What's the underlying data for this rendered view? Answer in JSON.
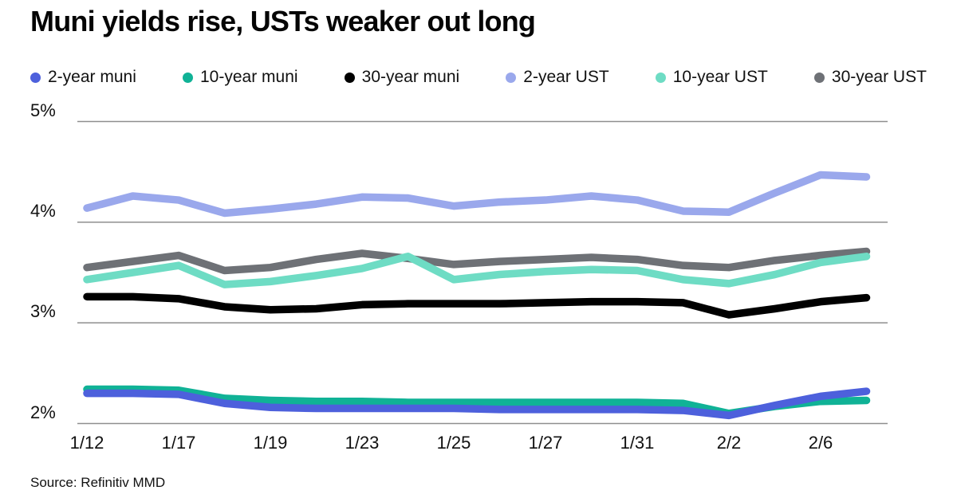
{
  "title": "Muni yields rise, USTs weaker out long",
  "source": "Source: Refinitiv MMD",
  "chart_data": {
    "type": "line",
    "title": "Muni yields rise, USTs weaker out long",
    "grid": true,
    "legend_position": "top",
    "n_points": 18,
    "ylim": [
      2,
      5
    ],
    "yticks": [
      {
        "value": 5,
        "label": "5%"
      },
      {
        "value": 4,
        "label": "4%"
      },
      {
        "value": 3,
        "label": "3%"
      },
      {
        "value": 2,
        "label": "2%"
      }
    ],
    "x_ticks": [
      {
        "index": 0,
        "label": "1/12"
      },
      {
        "index": 2,
        "label": "1/17"
      },
      {
        "index": 4,
        "label": "1/19"
      },
      {
        "index": 6,
        "label": "1/23"
      },
      {
        "index": 8,
        "label": "1/25"
      },
      {
        "index": 10,
        "label": "1/27"
      },
      {
        "index": 12,
        "label": "1/31"
      },
      {
        "index": 14,
        "label": "2/2"
      },
      {
        "index": 16,
        "label": "2/6"
      }
    ],
    "series": [
      {
        "name": "2-year muni",
        "color": "#4d60dc",
        "values": [
          2.3,
          2.3,
          2.29,
          2.2,
          2.16,
          2.15,
          2.15,
          2.15,
          2.15,
          2.14,
          2.14,
          2.14,
          2.14,
          2.13,
          2.08,
          2.18,
          2.27,
          2.32
        ]
      },
      {
        "name": "10-year muni",
        "color": "#10b296",
        "values": [
          2.34,
          2.34,
          2.33,
          2.25,
          2.23,
          2.22,
          2.22,
          2.21,
          2.21,
          2.21,
          2.21,
          2.21,
          2.21,
          2.2,
          2.1,
          2.17,
          2.22,
          2.23
        ]
      },
      {
        "name": "30-year muni",
        "color": "#000000",
        "values": [
          3.26,
          3.26,
          3.24,
          3.16,
          3.13,
          3.14,
          3.18,
          3.19,
          3.19,
          3.19,
          3.2,
          3.21,
          3.21,
          3.2,
          3.08,
          3.14,
          3.21,
          3.25
        ]
      },
      {
        "name": "2-year UST",
        "color": "#9aa8ec",
        "values": [
          4.14,
          4.26,
          4.22,
          4.09,
          4.13,
          4.18,
          4.25,
          4.24,
          4.16,
          4.2,
          4.22,
          4.26,
          4.22,
          4.11,
          4.1,
          4.29,
          4.47,
          4.45
        ]
      },
      {
        "name": "10-year UST",
        "color": "#6edcc4",
        "values": [
          3.43,
          3.5,
          3.57,
          3.38,
          3.41,
          3.47,
          3.54,
          3.66,
          3.43,
          3.48,
          3.51,
          3.53,
          3.52,
          3.43,
          3.39,
          3.48,
          3.6,
          3.66
        ]
      },
      {
        "name": "30-year UST",
        "color": "#6e7176",
        "values": [
          3.55,
          3.61,
          3.67,
          3.52,
          3.55,
          3.63,
          3.69,
          3.64,
          3.58,
          3.61,
          3.63,
          3.65,
          3.63,
          3.57,
          3.55,
          3.62,
          3.67,
          3.71
        ]
      }
    ]
  }
}
